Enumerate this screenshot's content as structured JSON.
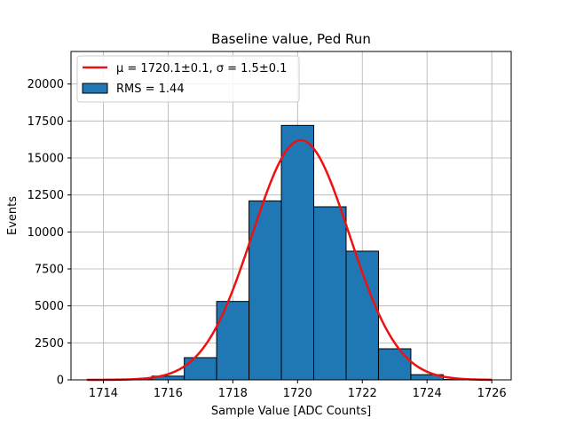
{
  "chart_data": {
    "type": "bar",
    "title": "Baseline value, Ped Run",
    "xlabel": "Sample Value [ADC Counts]",
    "ylabel": "Events",
    "xlim": [
      1713,
      1726.6
    ],
    "ylim": [
      0,
      22200
    ],
    "xticks": [
      1714,
      1716,
      1718,
      1720,
      1722,
      1724,
      1726
    ],
    "yticks": [
      0,
      2500,
      5000,
      7500,
      10000,
      12500,
      15000,
      17500,
      20000
    ],
    "grid": true,
    "legend_position": "top-left",
    "histogram": {
      "name": "RMS = 1.44",
      "color": "#1f77b4",
      "bin_edges": [
        1713.5,
        1714.5,
        1715.5,
        1716.5,
        1717.5,
        1718.5,
        1719.5,
        1720.5,
        1721.5,
        1722.5,
        1723.5,
        1724.5,
        1725.5
      ],
      "counts": [
        30,
        60,
        250,
        1500,
        5300,
        12100,
        17200,
        11700,
        8700,
        2100,
        350,
        30
      ]
    },
    "fit": {
      "name": "$\\mu = 1720.1\\pm0.1$, $\\sigma = 1.5\\pm0.1$",
      "legend_label": "μ = 1720.1±0.1, σ = 1.5±0.1",
      "color": "#ee1111",
      "mu": 1720.1,
      "sigma": 1.5,
      "amplitude": 16200,
      "x_range": [
        1713.5,
        1726
      ]
    }
  }
}
